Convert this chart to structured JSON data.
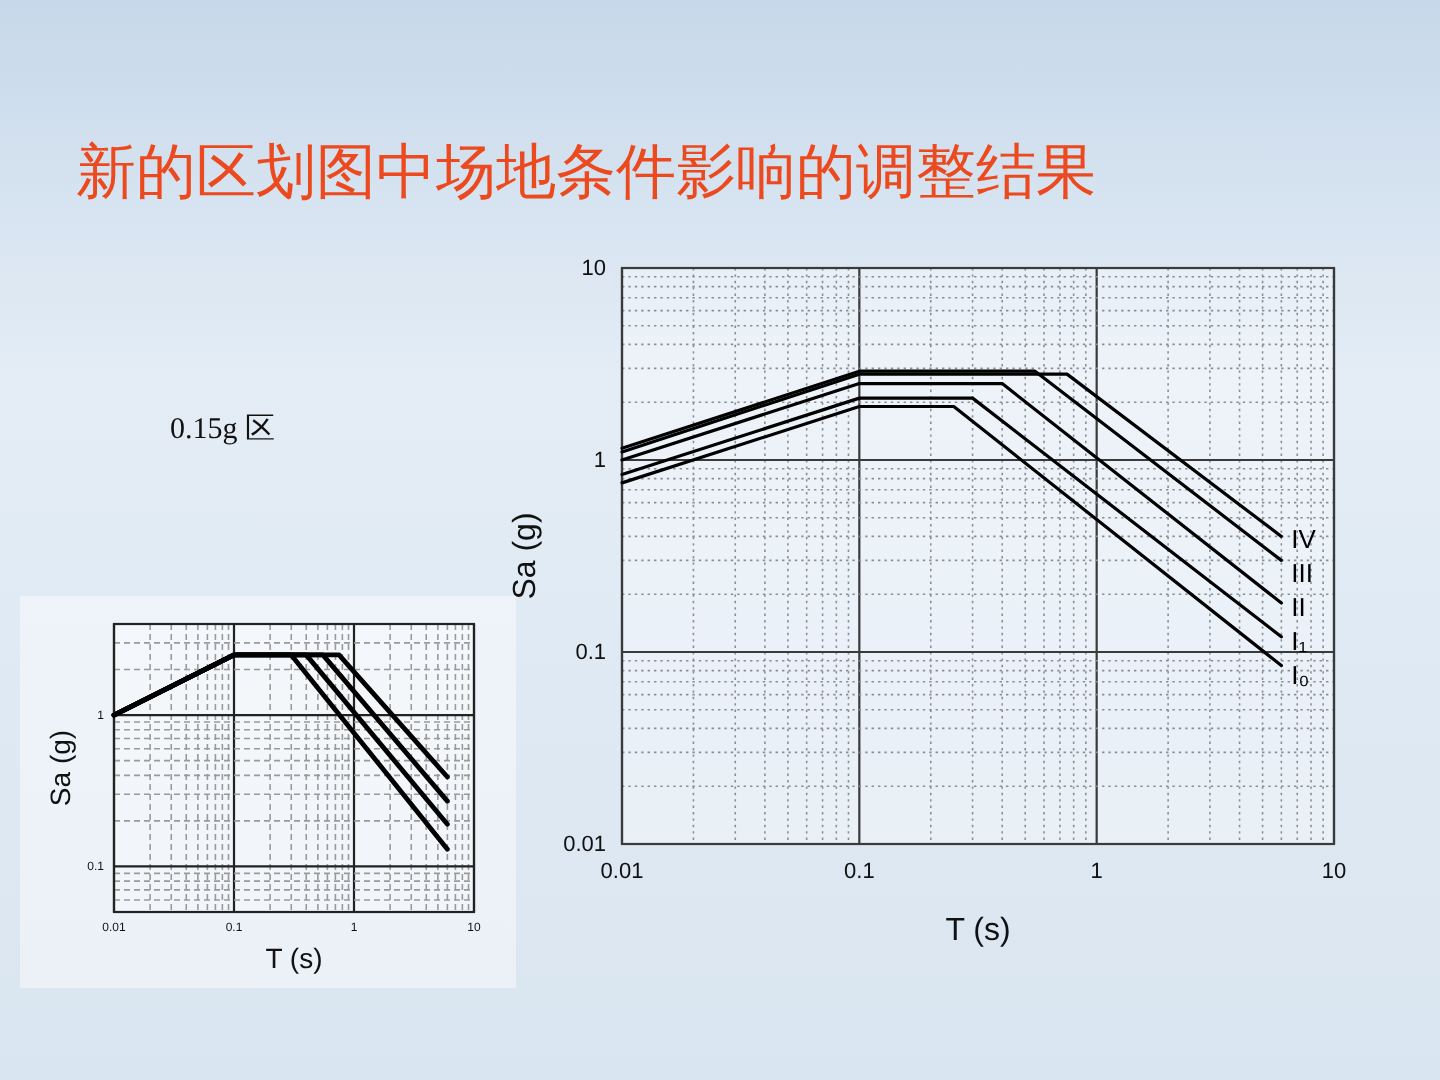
{
  "chart_data": [
    {
      "type": "line",
      "title": "新的区划图中场地条件影响的调整结果",
      "annotations": [
        "0.15g 区"
      ],
      "xlabel": "T (s)",
      "ylabel": "Sa (g)",
      "log": "xy",
      "grid": true,
      "xlim": [
        0.01,
        10
      ],
      "ylim": [
        0.01,
        10
      ],
      "xticks": [
        0.01,
        {
          "value": 0.02,
          "label": null
        },
        {
          "value": 0.03,
          "label": null
        },
        {
          "value": 0.04,
          "label": null
        },
        {
          "value": 0.05,
          "label": null
        },
        {
          "value": 0.06,
          "label": null
        },
        {
          "value": 0.07,
          "label": null
        },
        {
          "value": 0.08,
          "label": null
        },
        {
          "value": 0.09,
          "label": null
        },
        0.1,
        {
          "value": 0.2,
          "label": null
        },
        {
          "value": 0.3,
          "label": null
        },
        {
          "value": 0.4,
          "label": null
        },
        {
          "value": 0.5,
          "label": null
        },
        {
          "value": 0.6,
          "label": null
        },
        {
          "value": 0.7,
          "label": null
        },
        {
          "value": 0.8,
          "label": null
        },
        {
          "value": 0.9,
          "label": null
        },
        1,
        {
          "value": 2,
          "label": null
        },
        {
          "value": 3,
          "label": null
        },
        {
          "value": 4,
          "label": null
        },
        {
          "value": 5,
          "label": null
        },
        {
          "value": 6,
          "label": null
        },
        {
          "value": 7,
          "label": null
        },
        {
          "value": 8,
          "label": null
        },
        {
          "value": 9,
          "label": null
        },
        10
      ],
      "yticks": [
        0.01,
        {
          "value": 0.02,
          "label": null
        },
        {
          "value": 0.03,
          "label": null
        },
        {
          "value": 0.04,
          "label": null
        },
        {
          "value": 0.05,
          "label": null
        },
        {
          "value": 0.06,
          "label": null
        },
        {
          "value": 0.07,
          "label": null
        },
        {
          "value": 0.08,
          "label": null
        },
        {
          "value": 0.09,
          "label": null
        },
        0.1,
        {
          "value": 0.2,
          "label": null
        },
        {
          "value": 0.3,
          "label": null
        },
        {
          "value": 0.4,
          "label": null
        },
        {
          "value": 0.5,
          "label": null
        },
        {
          "value": 0.6,
          "label": null
        },
        {
          "value": 0.7,
          "label": null
        },
        {
          "value": 0.8,
          "label": null
        },
        {
          "value": 0.9,
          "label": null
        },
        1,
        {
          "value": 2,
          "label": null
        },
        {
          "value": 3,
          "label": null
        },
        {
          "value": 4,
          "label": null
        },
        {
          "value": 5,
          "label": null
        },
        {
          "value": 6,
          "label": null
        },
        {
          "value": 7,
          "label": null
        },
        {
          "value": 8,
          "label": null
        },
        {
          "value": 9,
          "label": null
        },
        10
      ],
      "series": [
        {
          "name": "IV",
          "color": "#000000",
          "x": [
            0.01,
            0.1,
            0.75,
            6
          ],
          "values": [
            1.1,
            2.8,
            2.8,
            0.4
          ]
        },
        {
          "name": "III",
          "color": "#000000",
          "x": [
            0.01,
            0.1,
            0.55,
            6
          ],
          "values": [
            1.15,
            2.9,
            2.9,
            0.3
          ]
        },
        {
          "name": "II",
          "color": "#000000",
          "x": [
            0.01,
            0.1,
            0.4,
            6
          ],
          "values": [
            1.0,
            2.5,
            2.5,
            0.18
          ]
        },
        {
          "name": "I₁",
          "color": "#000000",
          "x": [
            0.01,
            0.1,
            0.3,
            6
          ],
          "values": [
            0.84,
            2.1,
            2.1,
            0.12
          ]
        },
        {
          "name": "I₀",
          "color": "#000000",
          "x": [
            0.01,
            0.1,
            0.25,
            6
          ],
          "values": [
            0.76,
            1.9,
            1.9,
            0.085
          ]
        }
      ]
    },
    {
      "type": "line",
      "xlabel": "T (s)",
      "ylabel": "Sa (g)",
      "log": "xy",
      "grid": true,
      "xlim": [
        0.01,
        10
      ],
      "ylim": [
        0.05,
        4
      ],
      "xticks": [
        0.01,
        {
          "value": 0.02,
          "label": null
        },
        {
          "value": 0.03,
          "label": null
        },
        {
          "value": 0.04,
          "label": null
        },
        {
          "value": 0.05,
          "label": null
        },
        {
          "value": 0.06,
          "label": null
        },
        {
          "value": 0.07,
          "label": null
        },
        {
          "value": 0.08,
          "label": null
        },
        {
          "value": 0.09,
          "label": null
        },
        0.1,
        {
          "value": 0.2,
          "label": null
        },
        {
          "value": 0.3,
          "label": null
        },
        {
          "value": 0.4,
          "label": null
        },
        {
          "value": 0.5,
          "label": null
        },
        {
          "value": 0.6,
          "label": null
        },
        {
          "value": 0.7,
          "label": null
        },
        {
          "value": 0.8,
          "label": null
        },
        {
          "value": 0.9,
          "label": null
        },
        1,
        {
          "value": 2,
          "label": null
        },
        {
          "value": 3,
          "label": null
        },
        {
          "value": 4,
          "label": null
        },
        {
          "value": 5,
          "label": null
        },
        {
          "value": 6,
          "label": null
        },
        {
          "value": 7,
          "label": null
        },
        {
          "value": 8,
          "label": null
        },
        {
          "value": 9,
          "label": null
        },
        10
      ],
      "yticks": [
        {
          "value": 0.06,
          "label": null
        },
        {
          "value": 0.07,
          "label": null
        },
        {
          "value": 0.08,
          "label": null
        },
        {
          "value": 0.09,
          "label": null
        },
        0.1,
        {
          "value": 0.2,
          "label": null
        },
        {
          "value": 0.3,
          "label": null
        },
        {
          "value": 0.4,
          "label": null
        },
        {
          "value": 0.5,
          "label": null
        },
        {
          "value": 0.6,
          "label": null
        },
        {
          "value": 0.7,
          "label": null
        },
        {
          "value": 0.8,
          "label": null
        },
        {
          "value": 0.9,
          "label": null
        },
        1,
        {
          "value": 2,
          "label": null
        },
        {
          "value": 3,
          "label": null
        }
      ],
      "series": [
        {
          "color": "#000000",
          "x": [
            0.01,
            0.1,
            0.3,
            6
          ],
          "values": [
            1.0,
            2.5,
            2.5,
            0.13
          ]
        },
        {
          "color": "#000000",
          "x": [
            0.01,
            0.1,
            0.4,
            6
          ],
          "values": [
            1.0,
            2.5,
            2.5,
            0.19
          ]
        },
        {
          "color": "#000000",
          "x": [
            0.01,
            0.1,
            0.55,
            6
          ],
          "values": [
            1.0,
            2.5,
            2.5,
            0.27
          ]
        },
        {
          "color": "#000000",
          "x": [
            0.01,
            0.1,
            0.75,
            6
          ],
          "values": [
            1.0,
            2.5,
            2.5,
            0.39
          ]
        }
      ]
    }
  ]
}
